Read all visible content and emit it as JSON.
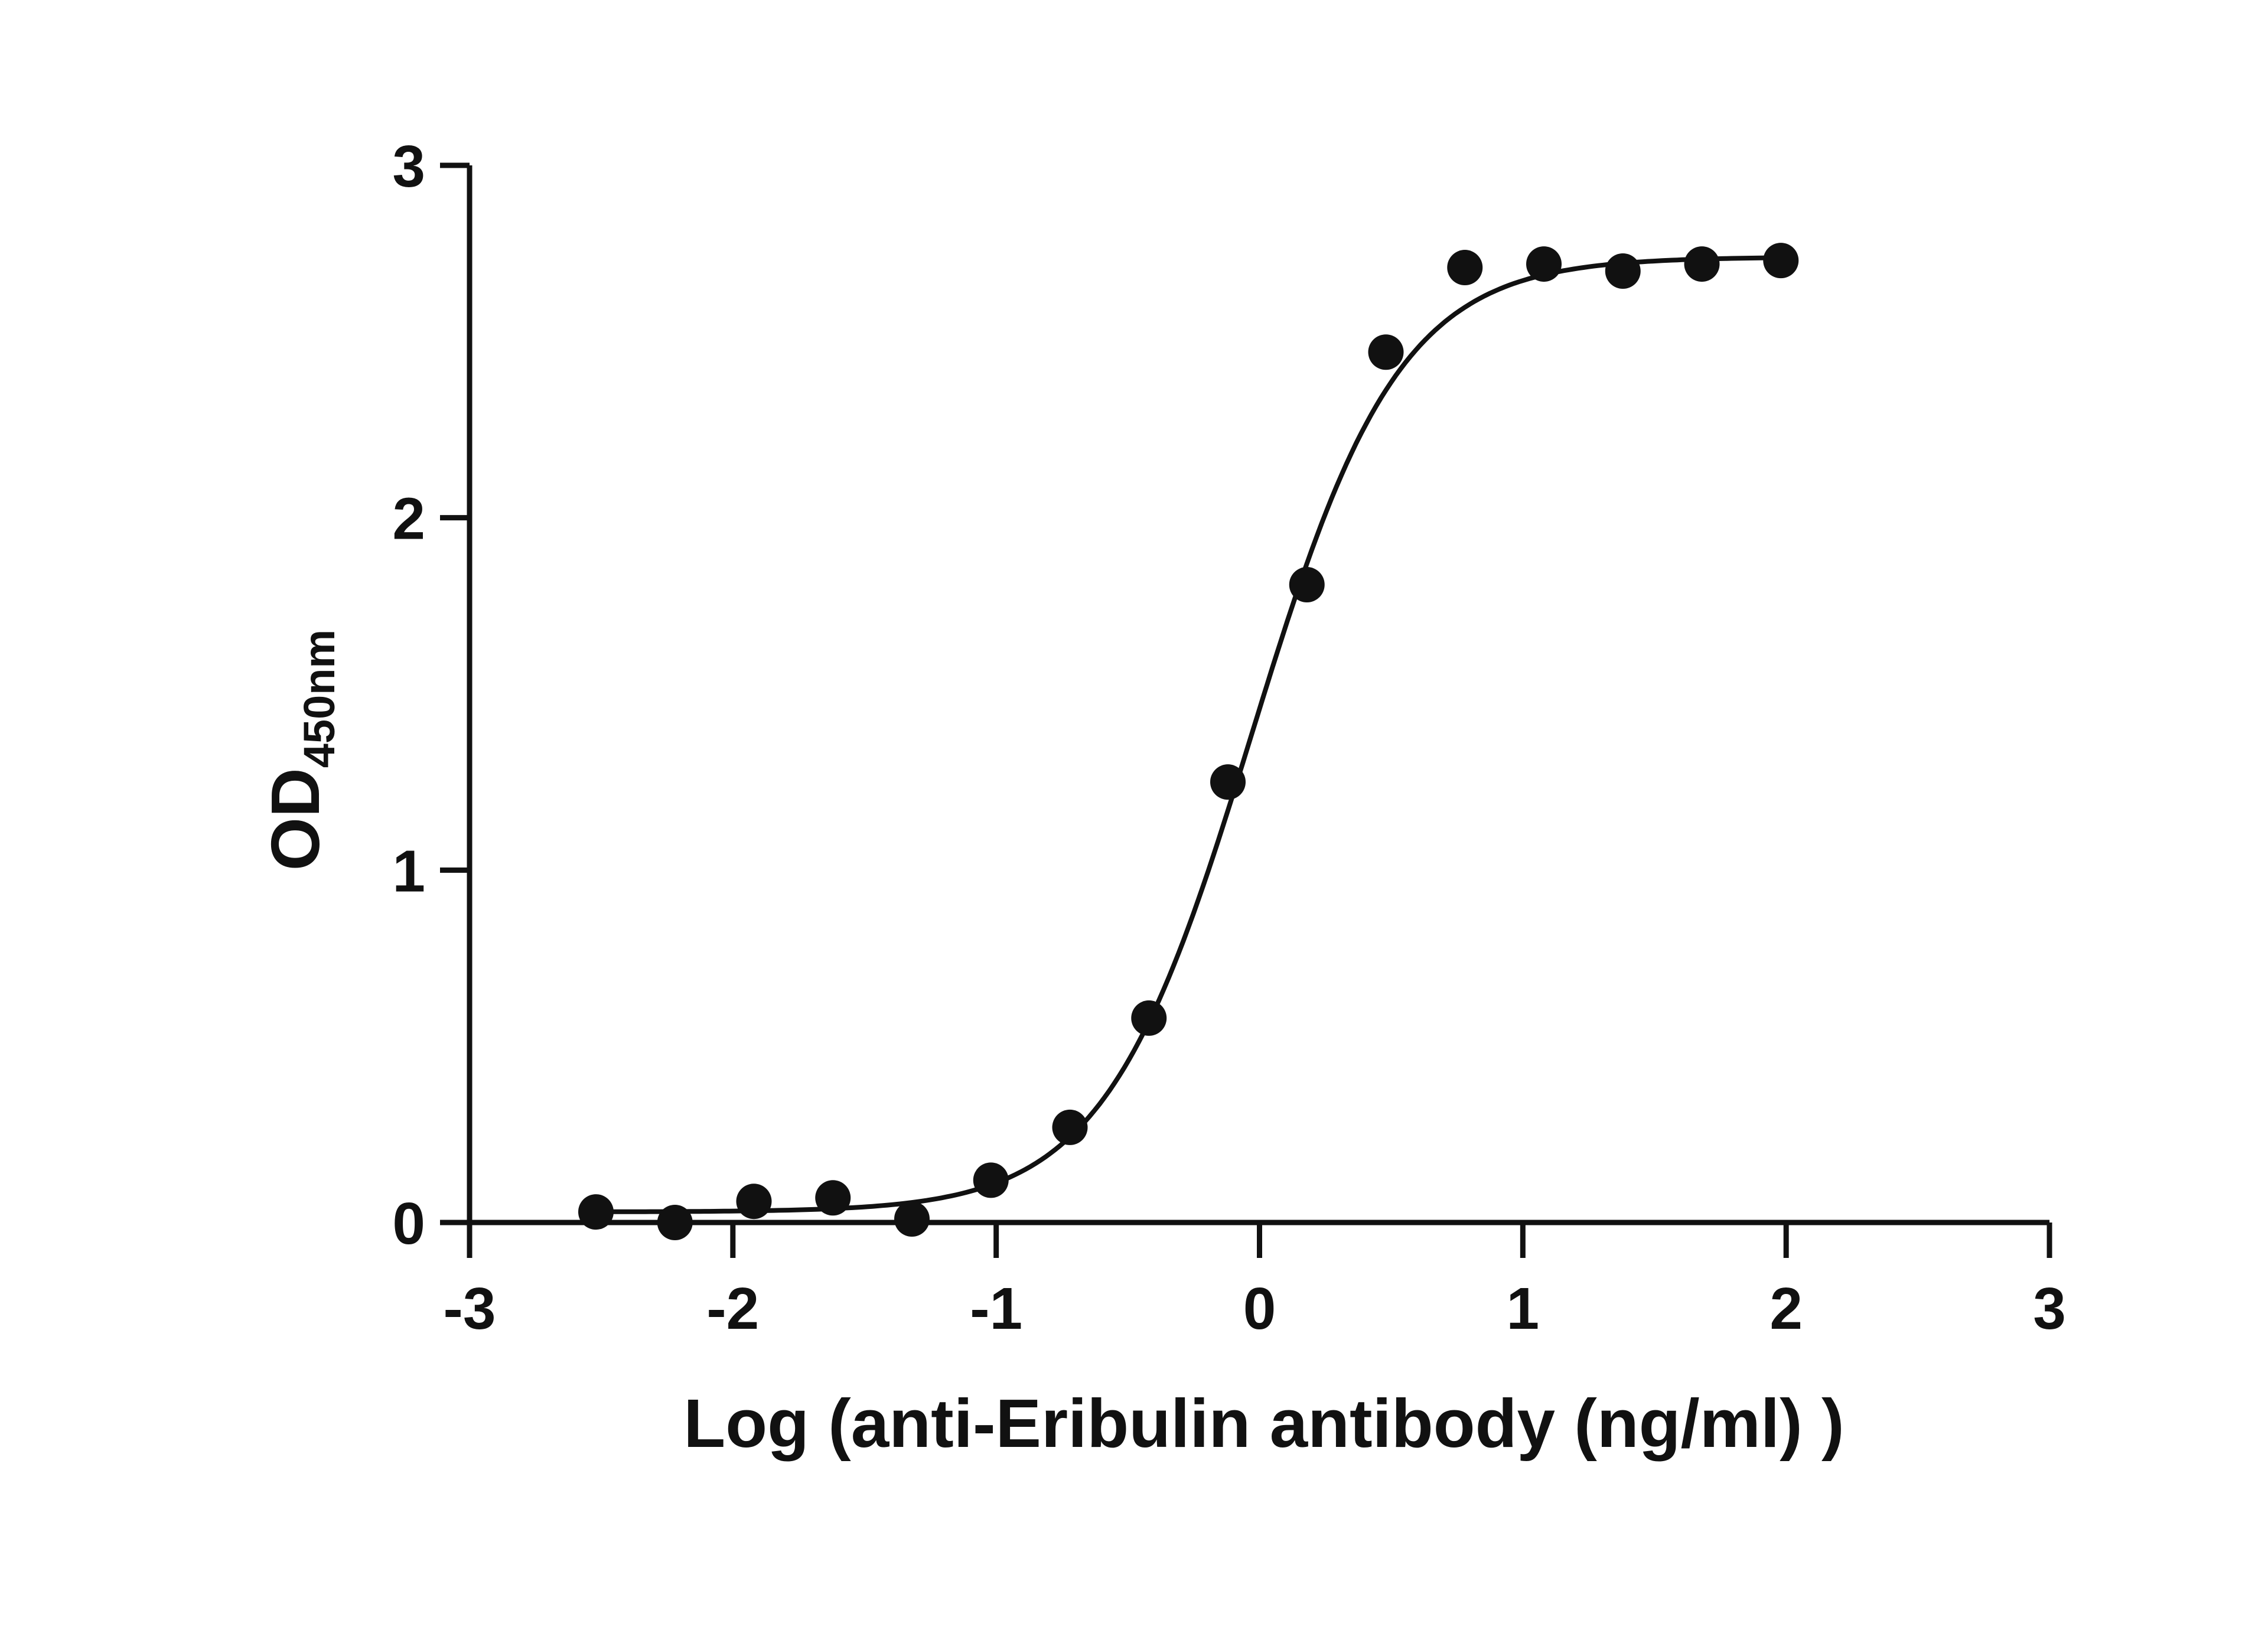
{
  "chart_data": {
    "type": "scatter",
    "xlabel": "Log (anti-Eribulin antibody (ng/ml) )",
    "ylabel": "OD",
    "ylabel_subscript": "450nm",
    "xlim": [
      -3,
      3
    ],
    "ylim": [
      0,
      3
    ],
    "x_ticks": [
      "-3",
      "-2",
      "-1",
      "0",
      "1",
      "2",
      "3"
    ],
    "y_ticks": [
      "0",
      "1",
      "2",
      "3"
    ],
    "grid": false,
    "marker_color": "#111111",
    "curve_color": "#111111",
    "points": [
      {
        "x": -2.52,
        "y": 0.03
      },
      {
        "x": -2.22,
        "y": 0.0
      },
      {
        "x": -1.92,
        "y": 0.06
      },
      {
        "x": -1.62,
        "y": 0.07
      },
      {
        "x": -1.32,
        "y": 0.01
      },
      {
        "x": -1.02,
        "y": 0.12
      },
      {
        "x": -0.72,
        "y": 0.27
      },
      {
        "x": -0.42,
        "y": 0.58
      },
      {
        "x": -0.12,
        "y": 1.25
      },
      {
        "x": 0.18,
        "y": 1.81
      },
      {
        "x": 0.48,
        "y": 2.47
      },
      {
        "x": 0.78,
        "y": 2.71
      },
      {
        "x": 1.08,
        "y": 2.72
      },
      {
        "x": 1.38,
        "y": 2.7
      },
      {
        "x": 1.68,
        "y": 2.72
      },
      {
        "x": 1.98,
        "y": 2.73
      }
    ],
    "fit": {
      "model": "4PL",
      "bottom": 0.03,
      "top": 2.74,
      "logEC50": -0.03,
      "hill": 1.55,
      "x_range": [
        -2.52,
        1.98
      ]
    }
  }
}
